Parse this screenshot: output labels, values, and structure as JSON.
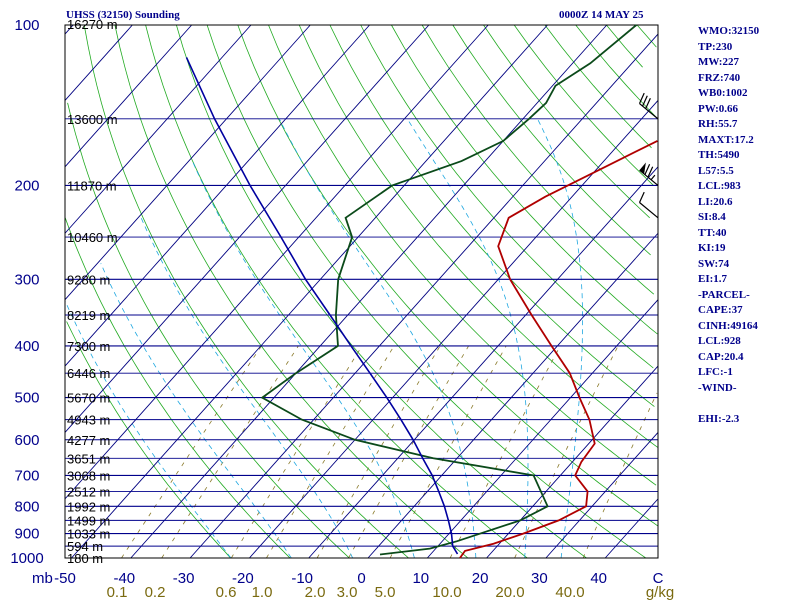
{
  "header": {
    "title": "UHSS (32150) Sounding",
    "valid_time": "0000Z 14 MAY 25"
  },
  "indices": [
    "WMO:32150",
    "TP:230",
    "MW:227",
    "FRZ:740",
    "WB0:1002",
    "PW:0.66",
    "RH:55.7",
    "MAXT:17.2",
    "TH:5490",
    "L57:5.5",
    "LCL:983",
    "LI:20.6",
    "SI:8.4",
    "TT:40",
    "KI:19",
    "SW:74",
    "EI:1.7",
    "-PARCEL-",
    "CAPE:37",
    "CINH:49164",
    "LCL:928",
    "CAP:20.4",
    "LFC:-1",
    "-WIND-",
    "",
    "EHI:-2.3"
  ],
  "colors": {
    "background": "#ffffff",
    "frame": "#000000",
    "isobar": "#00008b",
    "isotherm": "#000080",
    "dry_adiabat": "#22aa22",
    "moist_adiabat": "#1ea7e0",
    "mixing_ratio": "#8a7a2a",
    "temperature": "#b00000",
    "dewpoint": "#0b4a1a",
    "parcel": "#0000a0",
    "text_dark": "#00008b",
    "text_olive": "#7a6a10"
  },
  "chart_data": {
    "type": "line",
    "subtype": "skew-T log-P thermodynamic diagram",
    "title": "UHSS (32150) Sounding",
    "subtitle": "0000Z 14 MAY 25",
    "y_axis": {
      "unit": "mb",
      "scale": "log",
      "range": [
        1000,
        100
      ],
      "tick_labels": [
        "100",
        "200",
        "300",
        "400",
        "500",
        "600",
        "700",
        "800",
        "900",
        "1000"
      ]
    },
    "x_axis": {
      "unit": "C",
      "range": [
        -50,
        50
      ],
      "tick_labels": [
        "-50",
        "-40",
        "-30",
        "-20",
        "-10",
        "0",
        "10",
        "20",
        "30",
        "40",
        "C"
      ]
    },
    "mixing_ratio_axis": {
      "unit": "g/kg",
      "tick_labels": [
        "0.1",
        "0.2",
        "0.6",
        "1.0",
        "2.0",
        "3.0",
        "5.0",
        "10.0",
        "20.0",
        "40.0",
        "g/kg"
      ]
    },
    "height_labels": [
      {
        "p": 150,
        "label": "13600 m"
      },
      {
        "p": 200,
        "label": "11870 m"
      },
      {
        "p": 250,
        "label": "10460 m"
      },
      {
        "p": 300,
        "label": "9280 m"
      },
      {
        "p": 350,
        "label": "8219 m"
      },
      {
        "p": 400,
        "label": "7300 m"
      },
      {
        "p": 450,
        "label": "6446 m"
      },
      {
        "p": 500,
        "label": "5670 m"
      },
      {
        "p": 550,
        "label": "4943 m"
      },
      {
        "p": 600,
        "label": "4277 m"
      },
      {
        "p": 650,
        "label": "3651 m"
      },
      {
        "p": 700,
        "label": "3068 m"
      },
      {
        "p": 750,
        "label": "2512 m"
      },
      {
        "p": 800,
        "label": "1992 m"
      },
      {
        "p": 850,
        "label": "1499 m"
      },
      {
        "p": 900,
        "label": "1033 m"
      },
      {
        "p": 950,
        "label": "594 m"
      },
      {
        "p": 1000,
        "label": "180 m"
      }
    ],
    "top_height_label": "16270 m",
    "series": [
      {
        "name": "temperature",
        "points": [
          {
            "p": 1012,
            "t": 17.2
          },
          {
            "p": 1000,
            "t": 15.5
          },
          {
            "p": 970,
            "t": 15.3
          },
          {
            "p": 940,
            "t": 19.0
          },
          {
            "p": 900,
            "t": 22.5
          },
          {
            "p": 850,
            "t": 26.5
          },
          {
            "p": 800,
            "t": 29.0
          },
          {
            "p": 750,
            "t": 27.0
          },
          {
            "p": 700,
            "t": 22.5
          },
          {
            "p": 660,
            "t": 21.5
          },
          {
            "p": 610,
            "t": 21.0
          },
          {
            "p": 550,
            "t": 16.5
          },
          {
            "p": 500,
            "t": 11.5
          },
          {
            "p": 450,
            "t": 6.2
          },
          {
            "p": 400,
            "t": -1.0
          },
          {
            "p": 350,
            "t": -9.0
          },
          {
            "p": 300,
            "t": -18.0
          },
          {
            "p": 260,
            "t": -25.0
          },
          {
            "p": 230,
            "t": -27.5
          },
          {
            "p": 210,
            "t": -24.5
          },
          {
            "p": 185,
            "t": -19.0
          },
          {
            "p": 165,
            "t": -14.0
          },
          {
            "p": 150,
            "t": -14.0
          },
          {
            "p": 135,
            "t": -14.5
          },
          {
            "p": 120,
            "t": -18.0
          },
          {
            "p": 100,
            "t": -21.5
          }
        ]
      },
      {
        "name": "dewpoint",
        "points": [
          {
            "p": 1012,
            "t": 2.0
          },
          {
            "p": 985,
            "t": 1.5
          },
          {
            "p": 960,
            "t": 9.0
          },
          {
            "p": 930,
            "t": 12.5
          },
          {
            "p": 850,
            "t": 20.0
          },
          {
            "p": 800,
            "t": 22.5
          },
          {
            "p": 700,
            "t": 15.5
          },
          {
            "p": 650,
            "t": -4.0
          },
          {
            "p": 600,
            "t": -20.0
          },
          {
            "p": 550,
            "t": -32.0
          },
          {
            "p": 500,
            "t": -42.0
          },
          {
            "p": 450,
            "t": -40.0
          },
          {
            "p": 400,
            "t": -37.0
          },
          {
            "p": 350,
            "t": -42.0
          },
          {
            "p": 300,
            "t": -47.0
          },
          {
            "p": 250,
            "t": -51.0
          },
          {
            "p": 230,
            "t": -55.0
          },
          {
            "p": 200,
            "t": -52.0
          },
          {
            "p": 180,
            "t": -44.0
          },
          {
            "p": 165,
            "t": -40.0
          },
          {
            "p": 150,
            "t": -39.0
          },
          {
            "p": 140,
            "t": -38.5
          },
          {
            "p": 130,
            "t": -39.5
          },
          {
            "p": 118,
            "t": -37.0
          },
          {
            "p": 100,
            "t": -35.0
          }
        ]
      },
      {
        "name": "parcel",
        "points": [
          {
            "p": 1012,
            "t": 17.2
          },
          {
            "p": 983,
            "t": 14.5
          },
          {
            "p": 950,
            "t": 12.5
          },
          {
            "p": 900,
            "t": 10.4
          },
          {
            "p": 850,
            "t": 7.9
          },
          {
            "p": 800,
            "t": 5.1
          },
          {
            "p": 750,
            "t": 1.9
          },
          {
            "p": 700,
            "t": -1.6
          },
          {
            "p": 650,
            "t": -5.8
          },
          {
            "p": 600,
            "t": -10.2
          },
          {
            "p": 550,
            "t": -15.3
          },
          {
            "p": 500,
            "t": -21.0
          },
          {
            "p": 450,
            "t": -27.5
          },
          {
            "p": 400,
            "t": -34.8
          },
          {
            "p": 350,
            "t": -43.0
          },
          {
            "p": 300,
            "t": -52.5
          },
          {
            "p": 250,
            "t": -63.0
          },
          {
            "p": 200,
            "t": -76.0
          },
          {
            "p": 150,
            "t": -92.0
          },
          {
            "p": 115,
            "t": -106.0
          }
        ]
      }
    ],
    "wind_barbs": [
      {
        "p": 150,
        "speed_kt": 30
      },
      {
        "p": 200,
        "speed_kt": 75
      },
      {
        "p": 230,
        "speed_kt": 10
      }
    ],
    "grid": true
  }
}
